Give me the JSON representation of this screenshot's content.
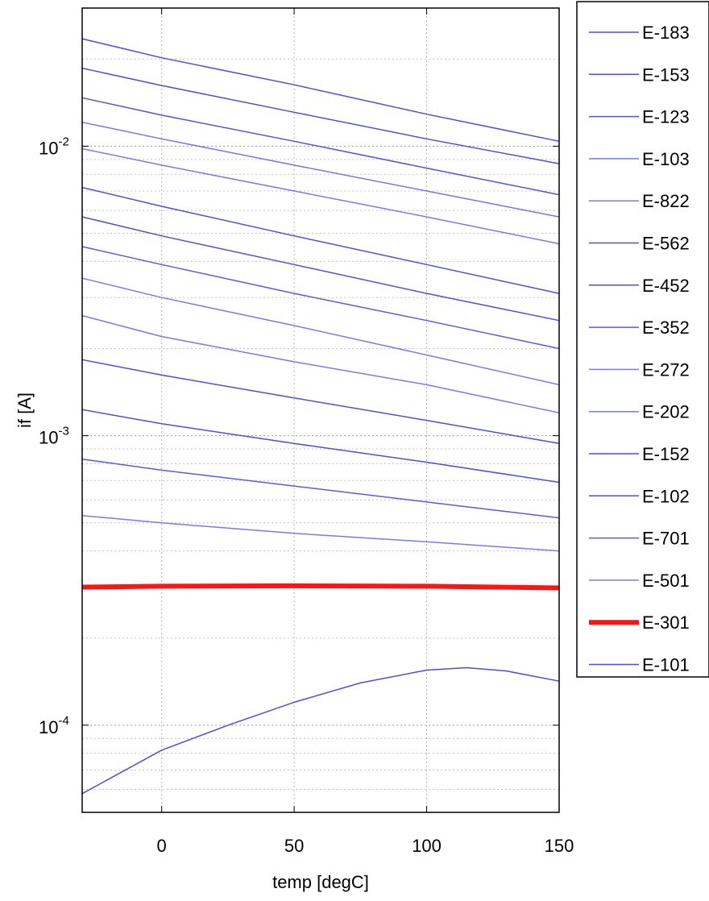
{
  "chart_data": {
    "type": "line",
    "xlabel": "temp [degC]",
    "ylabel": "if [A]",
    "xlim": [
      -30,
      150
    ],
    "ylim": [
      5e-05,
      0.03
    ],
    "y_scale": "log",
    "grid": true,
    "legend_position": "outside-right",
    "x_ticks": [
      {
        "value": 0,
        "label": "0"
      },
      {
        "value": 50,
        "label": "50"
      },
      {
        "value": 100,
        "label": "100"
      },
      {
        "value": 150,
        "label": "150"
      }
    ],
    "y_ticks": [
      {
        "value": 0.0001,
        "base": "10",
        "exp": "-4"
      },
      {
        "value": 0.001,
        "base": "10",
        "exp": "-3"
      },
      {
        "value": 0.01,
        "base": "10",
        "exp": "-2"
      }
    ],
    "series": [
      {
        "name": "E-183",
        "color": "#4d4de6",
        "x": [
          -30,
          0,
          50,
          100,
          150
        ],
        "y": [
          0.0235,
          0.0202,
          0.0163,
          0.0129,
          0.0104
        ]
      },
      {
        "name": "E-153",
        "color": "#4d4de6",
        "x": [
          -30,
          0,
          50,
          100,
          150
        ],
        "y": [
          0.0186,
          0.0162,
          0.0131,
          0.0106,
          0.0087
        ]
      },
      {
        "name": "E-123",
        "color": "#5252e8",
        "x": [
          -30,
          0,
          50,
          100,
          150
        ],
        "y": [
          0.0147,
          0.0128,
          0.0104,
          0.0084,
          0.0068
        ]
      },
      {
        "name": "E-103",
        "color": "#7575ee",
        "x": [
          -30,
          0,
          50,
          100,
          150
        ],
        "y": [
          0.0121,
          0.0106,
          0.0086,
          0.007,
          0.0057
        ]
      },
      {
        "name": "E-822",
        "color": "#7a7aee",
        "x": [
          -30,
          0,
          50,
          100,
          150
        ],
        "y": [
          0.0098,
          0.0086,
          0.007,
          0.0057,
          0.0046
        ]
      },
      {
        "name": "E-562",
        "color": "#4d4de6",
        "x": [
          -30,
          0,
          50,
          100,
          150
        ],
        "y": [
          0.0072,
          0.0062,
          0.0049,
          0.0039,
          0.0031
        ]
      },
      {
        "name": "E-452",
        "color": "#4d4de6",
        "x": [
          -30,
          0,
          50,
          100,
          150
        ],
        "y": [
          0.0057,
          0.0049,
          0.0039,
          0.0031,
          0.0025
        ]
      },
      {
        "name": "E-352",
        "color": "#5a5ae8",
        "x": [
          -30,
          0,
          50,
          100,
          150
        ],
        "y": [
          0.0045,
          0.0039,
          0.0031,
          0.0025,
          0.002
        ]
      },
      {
        "name": "E-272",
        "color": "#7a7aee",
        "x": [
          -30,
          0,
          50,
          100,
          150
        ],
        "y": [
          0.0035,
          0.003,
          0.0024,
          0.0019,
          0.0015
        ]
      },
      {
        "name": "E-202",
        "color": "#7a7aee",
        "x": [
          -30,
          0,
          50,
          100,
          150
        ],
        "y": [
          0.0026,
          0.0022,
          0.0018,
          0.0015,
          0.0012
        ]
      },
      {
        "name": "E-152",
        "color": "#4d4de6",
        "x": [
          -30,
          0,
          50,
          100,
          150
        ],
        "y": [
          0.00183,
          0.00162,
          0.00135,
          0.00113,
          0.00094
        ]
      },
      {
        "name": "E-102",
        "color": "#4d4de6",
        "x": [
          -30,
          0,
          50,
          100,
          150
        ],
        "y": [
          0.00123,
          0.0011,
          0.00094,
          0.00081,
          0.00069
        ]
      },
      {
        "name": "E-701",
        "color": "#5a5ae8",
        "x": [
          -30,
          0,
          50,
          100,
          150
        ],
        "y": [
          0.00083,
          0.00076,
          0.00067,
          0.00059,
          0.00052
        ]
      },
      {
        "name": "E-501",
        "color": "#7a7aee",
        "x": [
          -30,
          0,
          50,
          100,
          150
        ],
        "y": [
          0.00053,
          0.0005,
          0.00046,
          0.00043,
          0.0004
        ]
      },
      {
        "name": "E-301",
        "color": "#ff1414",
        "x": [
          -30,
          0,
          50,
          100,
          150
        ],
        "y": [
          0.0003,
          0.000302,
          0.000303,
          0.000302,
          0.000298
        ]
      },
      {
        "name": "E-101",
        "color": "#4d4de6",
        "x": [
          -30,
          0,
          25,
          50,
          75,
          100,
          115,
          130,
          150
        ],
        "y": [
          5.8e-05,
          8.2e-05,
          0.0001,
          0.00012,
          0.00014,
          0.000155,
          0.000158,
          0.000154,
          0.000142
        ]
      }
    ]
  }
}
